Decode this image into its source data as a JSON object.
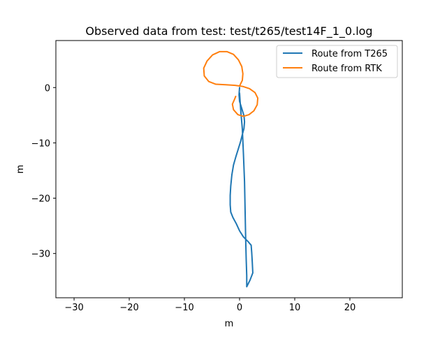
{
  "chart_data": {
    "type": "line",
    "title": "Observed data from test: test/t265/test14F_1_0.log",
    "xlabel": "m",
    "ylabel": "m",
    "xlim": [
      -33.3,
      29.5
    ],
    "ylim": [
      -38.0,
      8.5
    ],
    "xticks": [
      -30,
      -20,
      -10,
      0,
      10,
      20
    ],
    "yticks": [
      0,
      -10,
      -20,
      -30
    ],
    "grid": false,
    "legend_position": "top-right",
    "series": [
      {
        "name": "Route from T265",
        "color": "#1f77b4",
        "points": [
          [
            0.0,
            0.0
          ],
          [
            -0.1,
            -1.3
          ],
          [
            0.0,
            -2.5
          ],
          [
            0.4,
            -3.8
          ],
          [
            0.8,
            -5.1
          ],
          [
            0.9,
            -6.2
          ],
          [
            0.8,
            -7.4
          ],
          [
            0.5,
            -8.5
          ],
          [
            0.2,
            -9.7
          ],
          [
            -0.2,
            -11.0
          ],
          [
            -0.7,
            -12.6
          ],
          [
            -1.1,
            -14.0
          ],
          [
            -1.4,
            -15.8
          ],
          [
            -1.6,
            -17.8
          ],
          [
            -1.7,
            -19.5
          ],
          [
            -1.7,
            -21.2
          ],
          [
            -1.6,
            -22.5
          ],
          [
            -1.2,
            -23.5
          ],
          [
            -0.6,
            -24.6
          ],
          [
            0.0,
            -25.9
          ],
          [
            0.7,
            -27.0
          ],
          [
            1.5,
            -27.8
          ],
          [
            2.1,
            -28.5
          ],
          [
            2.2,
            -29.8
          ],
          [
            2.3,
            -31.5
          ],
          [
            2.4,
            -33.5
          ],
          [
            1.9,
            -34.8
          ],
          [
            1.3,
            -36.0
          ],
          [
            1.3,
            -34.0
          ],
          [
            1.2,
            -31.0
          ],
          [
            1.1,
            -27.0
          ],
          [
            1.0,
            -22.0
          ],
          [
            0.9,
            -17.0
          ],
          [
            0.7,
            -12.0
          ],
          [
            0.5,
            -7.5
          ],
          [
            0.2,
            -4.0
          ],
          [
            0.0,
            -1.0
          ]
        ]
      },
      {
        "name": "Route from RTK",
        "color": "#ff7f0e",
        "points": [
          [
            0.0,
            0.3
          ],
          [
            0.5,
            1.3
          ],
          [
            0.6,
            2.5
          ],
          [
            0.4,
            3.8
          ],
          [
            -0.2,
            5.0
          ],
          [
            -1.1,
            6.0
          ],
          [
            -2.3,
            6.5
          ],
          [
            -3.6,
            6.5
          ],
          [
            -4.9,
            5.9
          ],
          [
            -5.9,
            4.8
          ],
          [
            -6.5,
            3.5
          ],
          [
            -6.4,
            2.1
          ],
          [
            -5.6,
            1.1
          ],
          [
            -4.3,
            0.6
          ],
          [
            -2.5,
            0.5
          ],
          [
            -0.8,
            0.4
          ],
          [
            0.6,
            0.2
          ],
          [
            1.8,
            -0.2
          ],
          [
            2.8,
            -0.9
          ],
          [
            3.3,
            -1.9
          ],
          [
            3.2,
            -3.1
          ],
          [
            2.6,
            -4.2
          ],
          [
            1.7,
            -4.9
          ],
          [
            0.7,
            -5.2
          ],
          [
            -0.3,
            -4.9
          ],
          [
            -1.1,
            -4.0
          ],
          [
            -1.3,
            -3.0
          ],
          [
            -0.9,
            -2.1
          ],
          [
            -0.7,
            -1.6
          ]
        ]
      }
    ]
  }
}
